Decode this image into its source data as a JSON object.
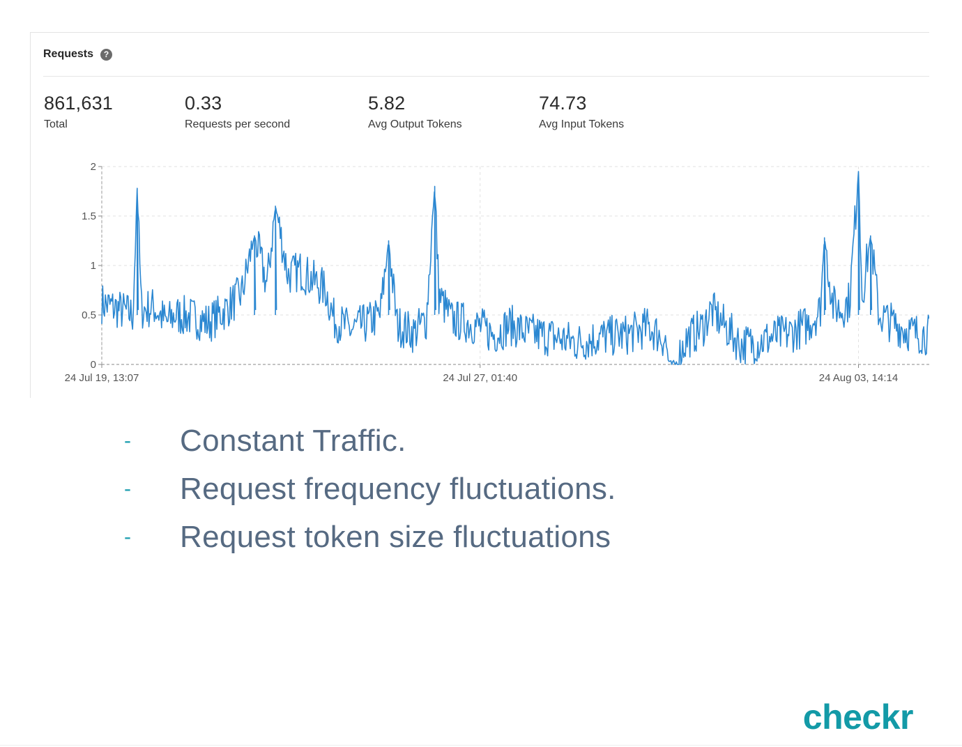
{
  "panel": {
    "title": "Requests",
    "help_icon": "question-circle-icon",
    "stats": [
      {
        "value": "861,631",
        "label": "Total"
      },
      {
        "value": "0.33",
        "label": "Requests per second"
      },
      {
        "value": "5.82",
        "label": "Avg Output Tokens"
      },
      {
        "value": "74.73",
        "label": "Avg Input Tokens"
      }
    ]
  },
  "chart_data": {
    "type": "line",
    "title": "",
    "xlabel": "",
    "ylabel": "",
    "ylim": [
      0,
      2
    ],
    "yticks": [
      0,
      0.5,
      1,
      1.5,
      2
    ],
    "ytick_labels": [
      "0",
      "0.5",
      "1",
      "1.5",
      "2"
    ],
    "xtick_labels": [
      "24 Jul 19, 13:07",
      "24 Jul 27, 01:40",
      "24 Aug 03, 14:14"
    ],
    "xlim": [
      "2024-07-19 13:07",
      "2024-08-05 00:00"
    ],
    "color": "#2b87d1",
    "grid": true,
    "series": [
      {
        "name": "",
        "points": [
          [
            "2024-07-19 13:07",
            0.62
          ],
          [
            "2024-07-19 22:00",
            0.55
          ],
          [
            "2024-07-20 04:00",
            0.5
          ],
          [
            "2024-07-20 06:00",
            1.78
          ],
          [
            "2024-07-20 08:00",
            0.55
          ],
          [
            "2024-07-20 14:00",
            0.58
          ],
          [
            "2024-07-20 20:00",
            0.42
          ],
          [
            "2024-07-21 00:00",
            0.5
          ],
          [
            "2024-07-21 08:00",
            0.48
          ],
          [
            "2024-07-21 16:00",
            0.42
          ],
          [
            "2024-07-22 00:00",
            0.55
          ],
          [
            "2024-07-22 08:00",
            0.72
          ],
          [
            "2024-07-22 14:00",
            1.3
          ],
          [
            "2024-07-22 20:00",
            0.8
          ],
          [
            "2024-07-23 00:00",
            1.6
          ],
          [
            "2024-07-23 06:00",
            0.9
          ],
          [
            "2024-07-23 12:00",
            0.95
          ],
          [
            "2024-07-23 18:00",
            0.85
          ],
          [
            "2024-07-24 00:00",
            0.75
          ],
          [
            "2024-07-24 04:00",
            0.45
          ],
          [
            "2024-07-24 12:00",
            0.35
          ],
          [
            "2024-07-24 20:00",
            0.42
          ],
          [
            "2024-07-25 02:00",
            0.5
          ],
          [
            "2024-07-25 06:00",
            1.25
          ],
          [
            "2024-07-25 10:00",
            0.4
          ],
          [
            "2024-07-25 18:00",
            0.32
          ],
          [
            "2024-07-26 00:00",
            0.45
          ],
          [
            "2024-07-26 04:00",
            1.8
          ],
          [
            "2024-07-26 06:00",
            0.7
          ],
          [
            "2024-07-26 12:00",
            0.45
          ],
          [
            "2024-07-26 20:00",
            0.42
          ],
          [
            "2024-07-27 01:40",
            0.38
          ],
          [
            "2024-07-27 08:00",
            0.3
          ],
          [
            "2024-07-27 16:00",
            0.4
          ],
          [
            "2024-07-28 00:00",
            0.32
          ],
          [
            "2024-07-28 12:00",
            0.28
          ],
          [
            "2024-07-29 00:00",
            0.22
          ],
          [
            "2024-07-29 12:00",
            0.28
          ],
          [
            "2024-07-30 00:00",
            0.3
          ],
          [
            "2024-07-30 10:00",
            0.38
          ],
          [
            "2024-07-30 18:00",
            0.25
          ],
          [
            "2024-07-30 20:00",
            0.0
          ],
          [
            "2024-07-30 23:00",
            0.0
          ],
          [
            "2024-07-31 04:00",
            0.25
          ],
          [
            "2024-07-31 12:00",
            0.38
          ],
          [
            "2024-07-31 16:00",
            0.55
          ],
          [
            "2024-07-31 22:00",
            0.4
          ],
          [
            "2024-08-01 06:00",
            0.2
          ],
          [
            "2024-08-01 14:00",
            0.22
          ],
          [
            "2024-08-01 22:00",
            0.28
          ],
          [
            "2024-08-02 06:00",
            0.32
          ],
          [
            "2024-08-02 14:00",
            0.4
          ],
          [
            "2024-08-02 20:00",
            0.55
          ],
          [
            "2024-08-02 22:00",
            1.28
          ],
          [
            "2024-08-03 02:00",
            0.6
          ],
          [
            "2024-08-03 06:00",
            0.55
          ],
          [
            "2024-08-03 10:00",
            0.65
          ],
          [
            "2024-08-03 14:14",
            1.95
          ],
          [
            "2024-08-03 16:00",
            0.7
          ],
          [
            "2024-08-03 20:00",
            1.3
          ],
          [
            "2024-08-04 00:00",
            0.5
          ],
          [
            "2024-08-04 08:00",
            0.4
          ],
          [
            "2024-08-04 16:00",
            0.32
          ],
          [
            "2024-08-05 00:00",
            0.3
          ]
        ]
      }
    ]
  },
  "bullets": [
    "Constant Traffic.",
    "Request frequency fluctuations.",
    "Request token size fluctuations"
  ],
  "logo_text": "checkr"
}
